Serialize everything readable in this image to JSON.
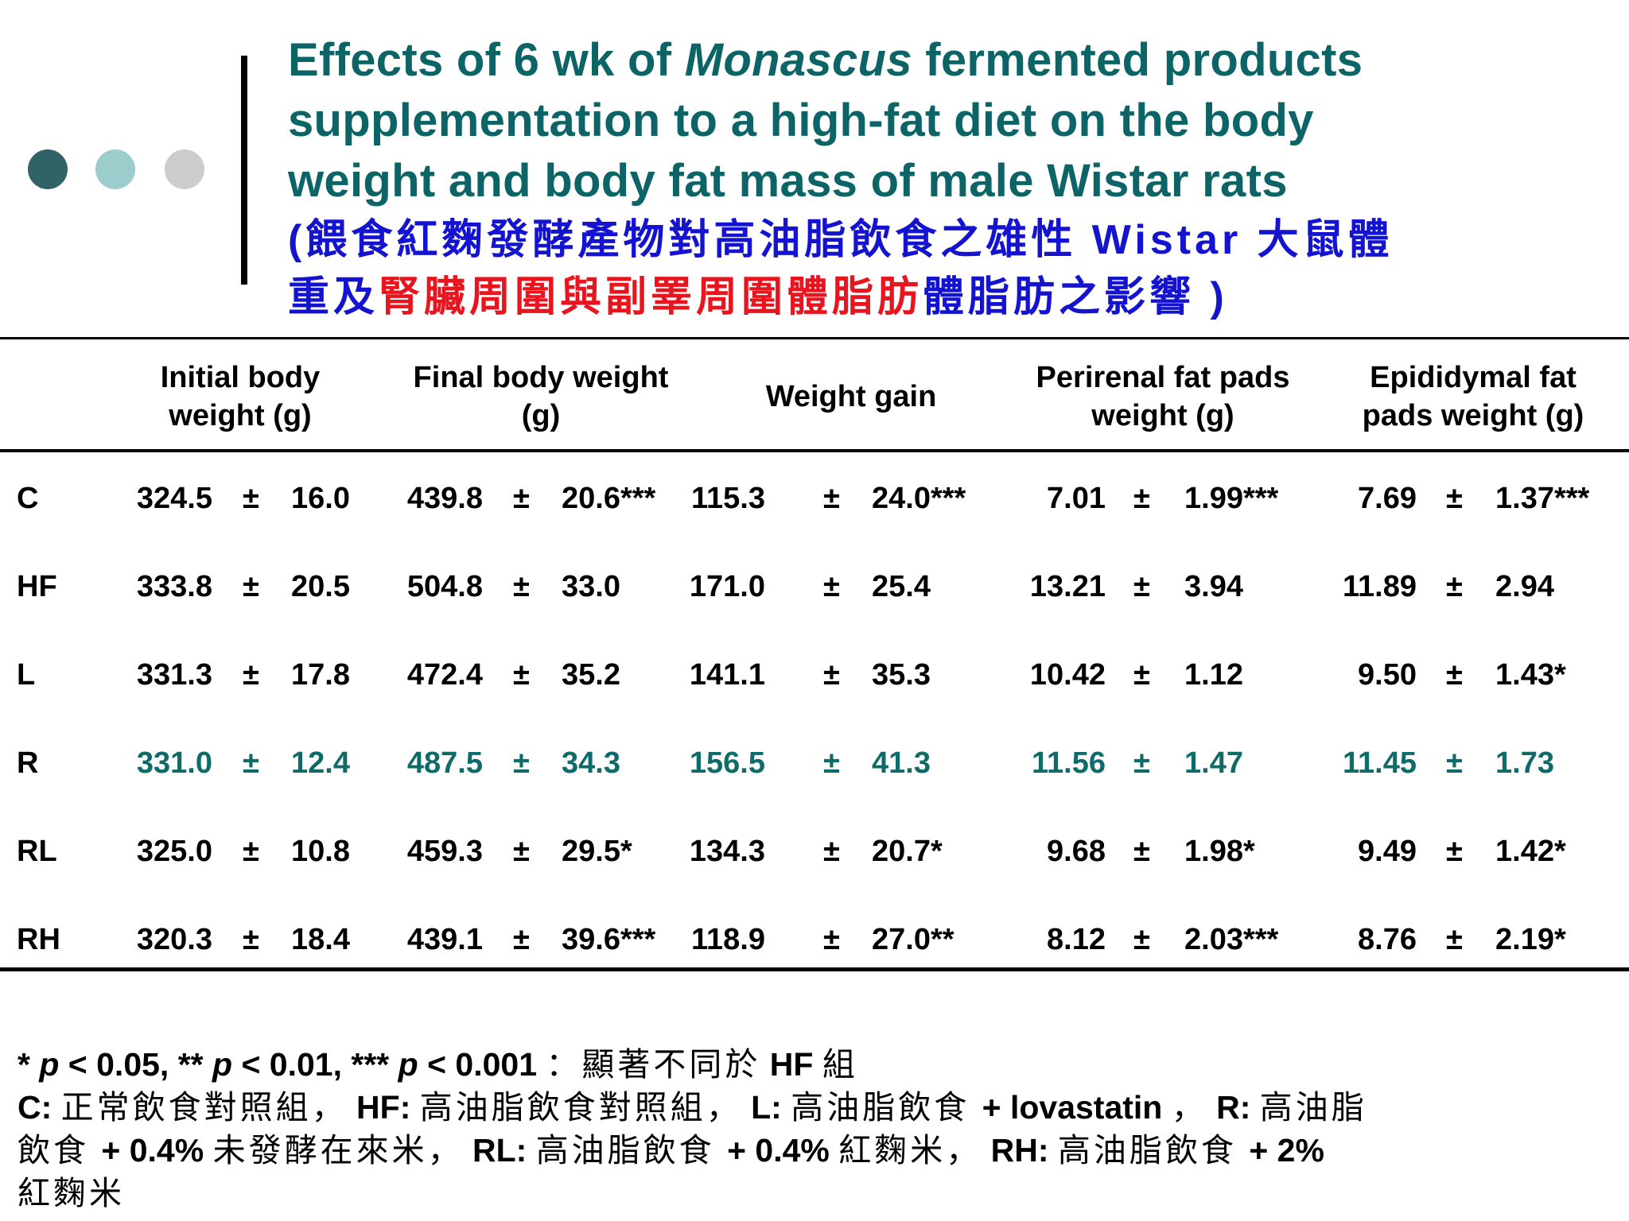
{
  "colors": {
    "title_teal": "#0c6466",
    "blue": "#1414d0",
    "red": "#e8141e",
    "highlight_row": "#0f6a6a",
    "dot_dark": "#2f6366",
    "dot_light": "#9ccccc",
    "dot_gray": "#cccccc"
  },
  "header": {
    "title_lines": [
      {
        "before": "Effects of 6 wk of ",
        "italic": "Monascus",
        "after": " fermented products"
      },
      {
        "text": "supplementation to a high-fat diet on the body"
      },
      {
        "text": "weight and body fat mass of male Wistar rats"
      }
    ],
    "zh_line1": "(餵食紅麴發酵產物對高油脂飲食之雄性  Wistar 大鼠體",
    "zh_line2_a": "重及",
    "zh_line2_b": "腎臟周圍與副睪周圍體脂肪",
    "zh_line2_c": "體脂肪之影響 )"
  },
  "table": {
    "headers": [
      [
        "Initial body",
        "weight (g)"
      ],
      [
        "Final body weight",
        "(g)"
      ],
      [
        "Weight gain"
      ],
      [
        "Perirenal fat pads",
        "weight (g)"
      ],
      [
        "Epididymal fat",
        "pads weight (g)"
      ]
    ],
    "pm": "±",
    "rows": [
      {
        "label": "C",
        "cells": [
          [
            "324.5",
            "16.0"
          ],
          [
            "439.8",
            "20.6***"
          ],
          [
            "115.3",
            "24.0***"
          ],
          [
            "7.01",
            "1.99***"
          ],
          [
            "7.69",
            "1.37***"
          ]
        ],
        "highlight": false
      },
      {
        "label": "HF",
        "cells": [
          [
            "333.8",
            "20.5"
          ],
          [
            "504.8",
            "33.0"
          ],
          [
            "171.0",
            "25.4"
          ],
          [
            "13.21",
            "3.94"
          ],
          [
            "11.89",
            "2.94"
          ]
        ],
        "highlight": false
      },
      {
        "label": "L",
        "cells": [
          [
            "331.3",
            "17.8"
          ],
          [
            "472.4",
            "35.2"
          ],
          [
            "141.1",
            "35.3"
          ],
          [
            "10.42",
            "1.12"
          ],
          [
            "9.50",
            "1.43*"
          ]
        ],
        "highlight": false
      },
      {
        "label": "R",
        "cells": [
          [
            "331.0",
            "12.4"
          ],
          [
            "487.5",
            "34.3"
          ],
          [
            "156.5",
            "41.3"
          ],
          [
            "11.56",
            "1.47"
          ],
          [
            "11.45",
            "1.73"
          ]
        ],
        "highlight": true
      },
      {
        "label": "RL",
        "cells": [
          [
            "325.0",
            "10.8"
          ],
          [
            "459.3",
            "29.5*"
          ],
          [
            "134.3",
            "20.7*"
          ],
          [
            "9.68",
            "1.98*"
          ],
          [
            "9.49",
            "1.42*"
          ]
        ],
        "highlight": false
      },
      {
        "label": "RH",
        "cells": [
          [
            "320.3",
            "18.4"
          ],
          [
            "439.1",
            "39.6***"
          ],
          [
            "118.9",
            "27.0**"
          ],
          [
            "8.12",
            "2.03***"
          ],
          [
            "8.76",
            "2.19*"
          ]
        ],
        "highlight": false
      }
    ]
  },
  "footer": {
    "line1": {
      "s1": "* ",
      "p1": "p",
      "t1": " < 0.05, ** ",
      "p2": "p",
      "t2": " < 0.01, *** ",
      "p3": "p",
      "t3": " < 0.001 ",
      "zh1": "：顯著不同於",
      "hf": "  HF ",
      "zh2": "組"
    },
    "line2": {
      "c": "C: ",
      "c_zh": "正常飲食對照組，",
      "hf": " HF: ",
      "hf_zh": "高油脂飲食對照組，",
      "l": " L: ",
      "l_zh": "高油脂飲食 ",
      "lov": " + lovastatin ",
      "comma": "，",
      "r": " R: ",
      "r_zh": "高油脂"
    },
    "line3": {
      "zh1": "飲食 ",
      "p04a": " + 0.4% ",
      "zh2": "未發酵在來米，",
      "rl": " RL: ",
      "rl_zh": "高油脂飲食 ",
      "p04b": " + 0.4% ",
      "zh3": "紅麴米，",
      "rh": " RH: ",
      "rh_zh": "高油脂飲食 ",
      "p2": " + 2%"
    },
    "line4": "紅麴米"
  }
}
